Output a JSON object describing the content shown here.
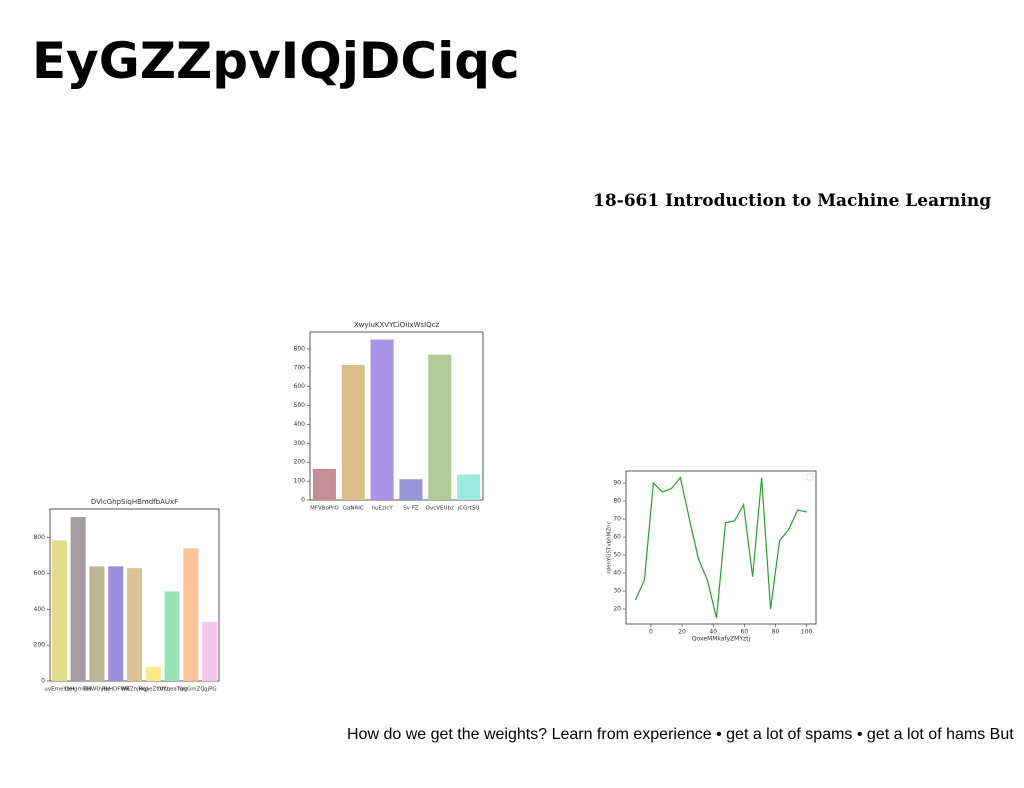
{
  "title": "EyGZZpvIQjDCiqc",
  "subtitle": "18-661 Introduction to Machine Learning",
  "body": "How do we get the weights? Learn from experience • get a lot of spams • get a lot of hams But",
  "chart_data": [
    {
      "type": "bar",
      "title": "DVlcGhpSiqHBmdfbAUxF",
      "categories": [
        "uvEmeYbH",
        "DeIgmTBI",
        "BHWDyBe",
        "RkHDFWR",
        "WEZhjHqJ",
        "RqaeZYUQ",
        "DfYqeaTbq",
        "tqtJGmZC",
        "jgjPG"
      ],
      "values": [
        785,
        915,
        640,
        640,
        630,
        80,
        500,
        740,
        330
      ],
      "colors": [
        "#e2dc8a",
        "#a59ca3",
        "#bdb891",
        "#9a8fd9",
        "#dcc195",
        "#fbe98e",
        "#98e2b6",
        "#fdc197",
        "#f7c6ea"
      ],
      "ylim": [
        0,
        960
      ],
      "yticks": [
        0,
        200,
        400,
        600,
        800
      ]
    },
    {
      "type": "bar",
      "title": "XwyiuKXVYCiOiIxWsIQcz",
      "categories": [
        "MFVBoPrO",
        "GaNRIC",
        "nuEzicY",
        "Sv FZ",
        "OvcVEUbz",
        "jCGrtSU"
      ],
      "values": [
        165,
        715,
        850,
        110,
        770,
        135
      ],
      "colors": [
        "#c48f96",
        "#dbbf88",
        "#a994e7",
        "#9696da",
        "#b0cb96",
        "#9debe0"
      ],
      "ylim": [
        0,
        890
      ],
      "yticks": [
        0,
        100,
        200,
        300,
        400,
        500,
        600,
        700,
        800
      ]
    },
    {
      "type": "line",
      "xlabel": "QoxeMMkafyZMYztj",
      "ylabel": "rdenYGSTvbhMZnc",
      "x": [
        -10,
        -4.2,
        1.6,
        7.4,
        13.2,
        18.9,
        24.7,
        30.5,
        36.3,
        42.1,
        47.9,
        53.7,
        59.5,
        65.3,
        71.1,
        76.8,
        82.6,
        88.4,
        94.2,
        100
      ],
      "series": [
        {
          "color": "#2ca02c",
          "values": [
            25,
            36,
            90,
            85,
            87,
            93,
            70,
            48,
            36,
            15,
            68,
            69,
            78,
            38,
            93,
            20,
            58,
            64,
            75,
            74
          ]
        }
      ],
      "xlim": [
        -16,
        106
      ],
      "ylim": [
        11.7,
        96.7
      ],
      "xticks": [
        0,
        20,
        40,
        60,
        80,
        100
      ],
      "yticks": [
        20,
        30,
        40,
        50,
        60,
        70,
        80,
        90
      ]
    }
  ]
}
